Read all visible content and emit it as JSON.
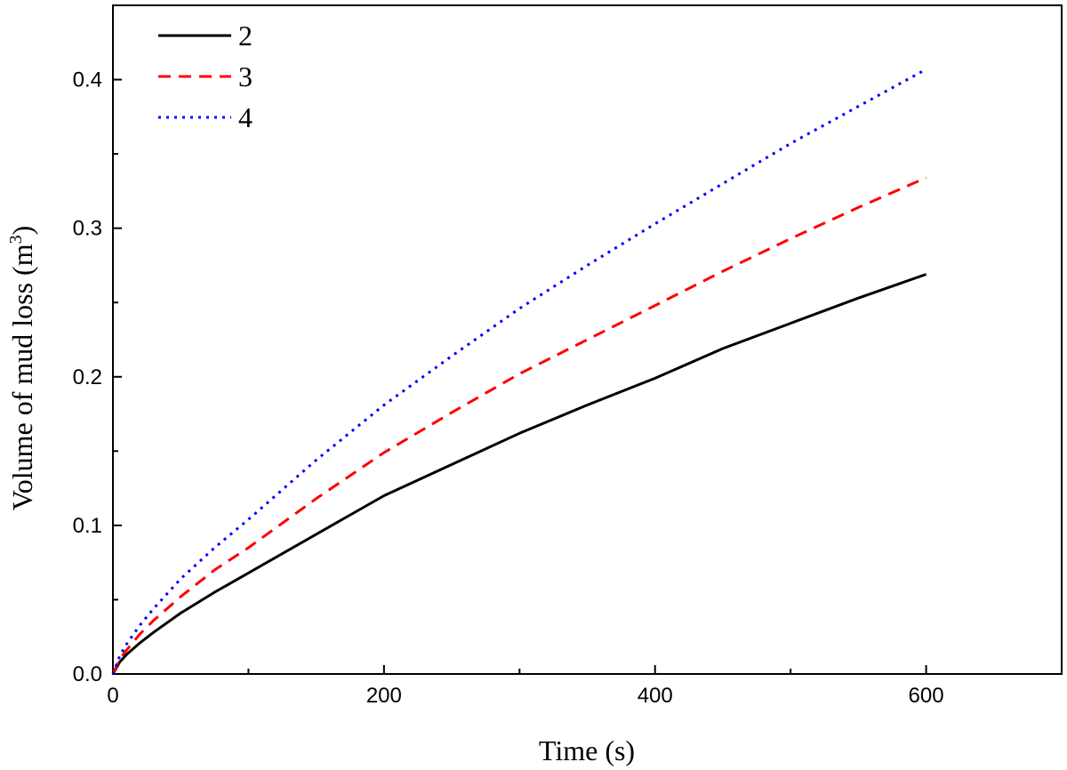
{
  "chart_data": {
    "type": "line",
    "title": "",
    "xlabel": "Time (s)",
    "ylabel": "Volume of mud loss (m",
    "ylabel_superscript": "3",
    "ylabel_suffix": ")",
    "xlim": [
      0,
      700
    ],
    "ylim": [
      0,
      0.45
    ],
    "xticks": [
      0,
      200,
      400,
      600
    ],
    "xtick_labels": [
      "0",
      "200",
      "400",
      "600"
    ],
    "xminor": [
      100,
      300,
      500
    ],
    "yticks": [
      0,
      0.1,
      0.2,
      0.3,
      0.4
    ],
    "ytick_labels": [
      "0.0",
      "0.1",
      "0.2",
      "0.3",
      "0.4"
    ],
    "grid": false,
    "legend_position": "top-left",
    "x": [
      0,
      5,
      10,
      20,
      30,
      50,
      75,
      100,
      150,
      200,
      250,
      300,
      350,
      400,
      450,
      500,
      550,
      600
    ],
    "series": [
      {
        "name": "2",
        "color": "#000000",
        "dash": "solid",
        "values": [
          0,
          0.008,
          0.013,
          0.021,
          0.028,
          0.041,
          0.055,
          0.068,
          0.094,
          0.12,
          0.141,
          0.162,
          0.181,
          0.199,
          0.219,
          0.236,
          0.253,
          0.269
        ]
      },
      {
        "name": "3",
        "color": "#ff0000",
        "dash": "dashed",
        "values": [
          0,
          0.01,
          0.016,
          0.027,
          0.036,
          0.052,
          0.07,
          0.085,
          0.118,
          0.149,
          0.176,
          0.202,
          0.225,
          0.248,
          0.271,
          0.293,
          0.314,
          0.334
        ]
      },
      {
        "name": "4",
        "color": "#0000ff",
        "dash": "dotted",
        "values": [
          0,
          0.012,
          0.02,
          0.033,
          0.044,
          0.064,
          0.085,
          0.104,
          0.144,
          0.181,
          0.214,
          0.246,
          0.275,
          0.303,
          0.33,
          0.357,
          0.382,
          0.407
        ]
      }
    ]
  }
}
